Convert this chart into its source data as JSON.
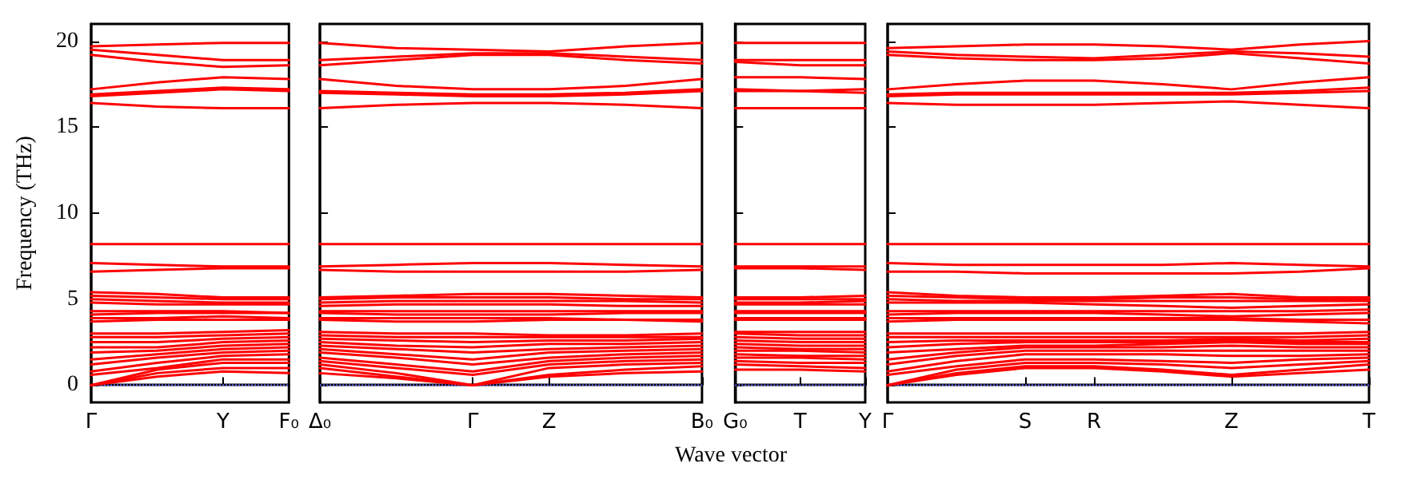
{
  "chart_data": [
    {
      "type": "line",
      "ylabel": "Frequency (THz)",
      "color": "#ff0000",
      "categories": [
        "Γ",
        null,
        "Y",
        "F₀"
      ],
      "ylim": [
        -1,
        21
      ],
      "yticks": [
        0,
        5,
        10,
        15,
        20
      ],
      "ref_lines": [
        {
          "axis": "y",
          "value": 0,
          "color": "#6666ff",
          "line_style": "dotted"
        }
      ],
      "series": [
        {
          "values": [
            19.7,
            19.8,
            19.9,
            19.9
          ]
        },
        {
          "values": [
            19.5,
            19.2,
            18.9,
            18.9
          ]
        },
        {
          "values": [
            19.2,
            18.8,
            18.5,
            18.6
          ]
        },
        {
          "values": [
            17.2,
            17.6,
            17.9,
            17.8
          ]
        },
        {
          "values": [
            16.9,
            17.1,
            17.3,
            17.2
          ]
        },
        {
          "values": [
            16.8,
            17.0,
            17.2,
            17.1
          ]
        },
        {
          "values": [
            16.4,
            16.2,
            16.1,
            16.1
          ]
        },
        {
          "values": [
            8.2,
            8.2,
            8.2,
            8.2
          ]
        },
        {
          "values": [
            7.1,
            7.0,
            6.9,
            6.9
          ]
        },
        {
          "values": [
            6.6,
            6.7,
            6.8,
            6.8
          ]
        },
        {
          "values": [
            5.4,
            5.3,
            5.1,
            5.1
          ]
        },
        {
          "values": [
            5.2,
            5.1,
            5.0,
            5.0
          ]
        },
        {
          "values": [
            5.0,
            4.9,
            4.8,
            4.8
          ]
        },
        {
          "values": [
            4.8,
            4.7,
            4.7,
            4.7
          ]
        },
        {
          "values": [
            4.3,
            4.3,
            4.3,
            4.2
          ]
        },
        {
          "values": [
            4.1,
            4.2,
            4.2,
            4.2
          ]
        },
        {
          "values": [
            3.9,
            3.9,
            4.0,
            3.9
          ]
        },
        {
          "values": [
            3.7,
            3.8,
            3.8,
            3.8
          ]
        },
        {
          "values": [
            0,
            0.5,
            0.8,
            0.7
          ]
        },
        {
          "values": [
            0,
            0.7,
            1.0,
            1.0
          ]
        },
        {
          "values": [
            0,
            0.9,
            1.3,
            1.3
          ]
        },
        {
          "values": [
            0.6,
            1.0,
            1.5,
            1.5
          ]
        },
        {
          "values": [
            0.8,
            1.3,
            1.7,
            1.8
          ]
        },
        {
          "values": [
            1.2,
            1.6,
            1.9,
            2.0
          ]
        },
        {
          "values": [
            1.5,
            1.8,
            2.1,
            2.2
          ]
        },
        {
          "values": [
            1.9,
            2.0,
            2.3,
            2.4
          ]
        },
        {
          "values": [
            2.2,
            2.2,
            2.5,
            2.6
          ]
        },
        {
          "values": [
            2.5,
            2.5,
            2.7,
            2.8
          ]
        },
        {
          "values": [
            2.8,
            2.8,
            2.9,
            3.0
          ]
        },
        {
          "values": [
            3.0,
            3.0,
            3.1,
            3.2
          ]
        }
      ]
    },
    {
      "type": "line",
      "xlabel": "Wave vector",
      "tick_labels": "x",
      "color": "#ff0000",
      "categories": [
        "Δ₀",
        null,
        "Γ",
        "Z",
        null,
        "B₀"
      ],
      "ylim": [
        -1,
        21
      ],
      "ref_lines": [
        {
          "axis": "y",
          "value": 0,
          "color": "#6666ff",
          "line_style": "dotted"
        }
      ],
      "series": [
        {
          "values": [
            19.9,
            19.6,
            19.5,
            19.4,
            19.7,
            19.9
          ]
        },
        {
          "values": [
            18.9,
            19.1,
            19.3,
            19.3,
            19.1,
            18.9
          ]
        },
        {
          "values": [
            18.6,
            18.9,
            19.2,
            19.2,
            18.9,
            18.7
          ]
        },
        {
          "values": [
            17.8,
            17.4,
            17.2,
            17.2,
            17.4,
            17.8
          ]
        },
        {
          "values": [
            17.1,
            17.0,
            16.9,
            16.9,
            17.0,
            17.2
          ]
        },
        {
          "values": [
            17.0,
            16.9,
            16.8,
            16.8,
            16.9,
            17.1
          ]
        },
        {
          "values": [
            16.1,
            16.3,
            16.4,
            16.4,
            16.3,
            16.1
          ]
        },
        {
          "values": [
            8.2,
            8.2,
            8.2,
            8.2,
            8.2,
            8.2
          ]
        },
        {
          "values": [
            6.9,
            7.0,
            7.1,
            7.1,
            7.0,
            6.9
          ]
        },
        {
          "values": [
            6.7,
            6.6,
            6.6,
            6.6,
            6.6,
            6.7
          ]
        },
        {
          "values": [
            5.1,
            5.2,
            5.3,
            5.3,
            5.2,
            5.1
          ]
        },
        {
          "values": [
            5.0,
            5.1,
            5.1,
            5.1,
            5.0,
            5.0
          ]
        },
        {
          "values": [
            4.8,
            4.9,
            4.9,
            4.9,
            4.9,
            4.8
          ]
        },
        {
          "values": [
            4.6,
            4.7,
            4.7,
            4.7,
            4.6,
            4.6
          ]
        },
        {
          "values": [
            4.3,
            4.3,
            4.3,
            4.3,
            4.3,
            4.3
          ]
        },
        {
          "values": [
            4.2,
            4.1,
            4.1,
            4.1,
            4.2,
            4.2
          ]
        },
        {
          "values": [
            3.9,
            3.9,
            3.9,
            3.9,
            3.8,
            3.8
          ]
        },
        {
          "values": [
            3.8,
            3.7,
            3.7,
            3.8,
            3.8,
            3.7
          ]
        },
        {
          "values": [
            0.7,
            0.4,
            0,
            0.5,
            0.7,
            0.8
          ]
        },
        {
          "values": [
            1.0,
            0.5,
            0,
            0.6,
            0.9,
            1.1
          ]
        },
        {
          "values": [
            1.2,
            0.7,
            0,
            1.0,
            1.2,
            1.3
          ]
        },
        {
          "values": [
            1.4,
            1.0,
            0.6,
            1.2,
            1.4,
            1.5
          ]
        },
        {
          "values": [
            1.6,
            1.2,
            0.8,
            1.4,
            1.6,
            1.7
          ]
        },
        {
          "values": [
            1.9,
            1.6,
            1.2,
            1.6,
            1.8,
            1.9
          ]
        },
        {
          "values": [
            2.1,
            1.8,
            1.5,
            1.9,
            2.0,
            2.1
          ]
        },
        {
          "values": [
            2.3,
            2.1,
            1.9,
            2.1,
            2.2,
            2.3
          ]
        },
        {
          "values": [
            2.5,
            2.3,
            2.2,
            2.4,
            2.4,
            2.5
          ]
        },
        {
          "values": [
            2.7,
            2.6,
            2.5,
            2.6,
            2.6,
            2.7
          ]
        },
        {
          "values": [
            2.9,
            2.8,
            2.8,
            2.8,
            2.8,
            2.8
          ]
        },
        {
          "values": [
            3.1,
            3.0,
            3.0,
            2.9,
            2.9,
            3.0
          ]
        }
      ]
    },
    {
      "type": "line",
      "tick_labels": "x",
      "color": "#ff0000",
      "categories": [
        "G₀",
        "T",
        "Y"
      ],
      "ylim": [
        -1,
        21
      ],
      "ref_lines": [
        {
          "axis": "y",
          "value": 0,
          "color": "#6666ff",
          "line_style": "dotted"
        }
      ],
      "series": [
        {
          "values": [
            19.9,
            19.9,
            19.9
          ]
        },
        {
          "values": [
            18.9,
            18.9,
            18.9
          ]
        },
        {
          "values": [
            18.8,
            18.6,
            18.6
          ]
        },
        {
          "values": [
            17.9,
            17.9,
            17.8
          ]
        },
        {
          "values": [
            17.2,
            17.1,
            17.2
          ]
        },
        {
          "values": [
            17.1,
            17.1,
            17.0
          ]
        },
        {
          "values": [
            16.1,
            16.1,
            16.1
          ]
        },
        {
          "values": [
            8.2,
            8.2,
            8.2
          ]
        },
        {
          "values": [
            6.9,
            6.9,
            6.9
          ]
        },
        {
          "values": [
            6.8,
            6.8,
            6.7
          ]
        },
        {
          "values": [
            5.1,
            5.1,
            5.2
          ]
        },
        {
          "values": [
            5.0,
            5.0,
            5.0
          ]
        },
        {
          "values": [
            4.8,
            4.8,
            4.9
          ]
        },
        {
          "values": [
            4.7,
            4.7,
            4.7
          ]
        },
        {
          "values": [
            4.3,
            4.3,
            4.3
          ]
        },
        {
          "values": [
            4.2,
            4.2,
            4.2
          ]
        },
        {
          "values": [
            3.9,
            3.9,
            3.9
          ]
        },
        {
          "values": [
            3.8,
            3.8,
            3.8
          ]
        },
        {
          "values": [
            0.9,
            0.9,
            0.8
          ]
        },
        {
          "values": [
            1.2,
            1.1,
            1.0
          ]
        },
        {
          "values": [
            1.4,
            1.3,
            1.3
          ]
        },
        {
          "values": [
            1.6,
            1.6,
            1.5
          ]
        },
        {
          "values": [
            1.8,
            1.7,
            1.7
          ]
        },
        {
          "values": [
            2.0,
            2.0,
            1.9
          ]
        },
        {
          "values": [
            2.2,
            2.1,
            2.1
          ]
        },
        {
          "values": [
            2.4,
            2.3,
            2.3
          ]
        },
        {
          "values": [
            2.6,
            2.5,
            2.5
          ]
        },
        {
          "values": [
            2.8,
            2.7,
            2.7
          ]
        },
        {
          "values": [
            3.0,
            2.9,
            2.9
          ]
        },
        {
          "values": [
            3.1,
            3.1,
            3.1
          ]
        }
      ]
    },
    {
      "type": "line",
      "tick_labels": "x",
      "color": "#ff0000",
      "categories": [
        "Γ",
        null,
        "S",
        "R",
        null,
        "Z",
        null,
        "T"
      ],
      "ylim": [
        -1,
        21
      ],
      "ref_lines": [
        {
          "axis": "y",
          "value": 0,
          "color": "#6666ff",
          "line_style": "dotted"
        }
      ],
      "series": [
        {
          "values": [
            19.6,
            19.7,
            19.8,
            19.8,
            19.7,
            19.5,
            19.8,
            20.0
          ]
        },
        {
          "values": [
            19.4,
            19.2,
            19.1,
            19.0,
            19.2,
            19.4,
            19.3,
            19.1
          ]
        },
        {
          "values": [
            19.2,
            19.0,
            18.9,
            18.9,
            19.0,
            19.3,
            19.0,
            18.7
          ]
        },
        {
          "values": [
            17.2,
            17.5,
            17.7,
            17.7,
            17.5,
            17.2,
            17.6,
            17.9
          ]
        },
        {
          "values": [
            16.9,
            17.0,
            17.0,
            17.0,
            17.0,
            17.0,
            17.1,
            17.3
          ]
        },
        {
          "values": [
            16.8,
            16.9,
            16.9,
            16.9,
            16.9,
            16.9,
            17.0,
            17.1
          ]
        },
        {
          "values": [
            16.4,
            16.3,
            16.3,
            16.3,
            16.4,
            16.5,
            16.3,
            16.1
          ]
        },
        {
          "values": [
            8.2,
            8.2,
            8.2,
            8.2,
            8.2,
            8.2,
            8.2,
            8.2
          ]
        },
        {
          "values": [
            7.1,
            7.0,
            7.0,
            7.0,
            7.0,
            7.1,
            7.0,
            6.9
          ]
        },
        {
          "values": [
            6.6,
            6.6,
            6.5,
            6.5,
            6.5,
            6.5,
            6.6,
            6.8
          ]
        },
        {
          "values": [
            5.4,
            5.2,
            5.1,
            5.1,
            5.2,
            5.3,
            5.1,
            5.1
          ]
        },
        {
          "values": [
            5.2,
            5.1,
            5.0,
            5.0,
            5.1,
            5.1,
            5.0,
            5.0
          ]
        },
        {
          "values": [
            5.0,
            4.9,
            4.9,
            4.9,
            4.9,
            4.9,
            4.9,
            4.9
          ]
        },
        {
          "values": [
            4.8,
            4.8,
            4.8,
            4.7,
            4.6,
            4.5,
            4.6,
            4.7
          ]
        },
        {
          "values": [
            4.3,
            4.3,
            4.3,
            4.3,
            4.3,
            4.3,
            4.3,
            4.4
          ]
        },
        {
          "values": [
            4.1,
            4.2,
            4.2,
            4.2,
            4.1,
            4.0,
            4.1,
            4.2
          ]
        },
        {
          "values": [
            3.9,
            3.9,
            3.9,
            3.9,
            3.9,
            3.9,
            3.8,
            3.8
          ]
        },
        {
          "values": [
            3.7,
            3.8,
            3.8,
            3.8,
            3.8,
            3.8,
            3.7,
            3.6
          ]
        },
        {
          "values": [
            0,
            0.6,
            1.0,
            1.0,
            0.8,
            0.5,
            0.7,
            0.9
          ]
        },
        {
          "values": [
            0,
            0.7,
            1.1,
            1.1,
            0.9,
            0.6,
            0.9,
            1.2
          ]
        },
        {
          "values": [
            0,
            0.9,
            1.3,
            1.3,
            1.2,
            1.0,
            1.2,
            1.4
          ]
        },
        {
          "values": [
            0.6,
            1.1,
            1.5,
            1.5,
            1.4,
            1.3,
            1.5,
            1.6
          ]
        },
        {
          "values": [
            0.8,
            1.4,
            1.8,
            1.8,
            1.8,
            1.7,
            1.7,
            1.8
          ]
        },
        {
          "values": [
            1.2,
            1.7,
            2.0,
            2.0,
            2.0,
            2.0,
            2.0,
            2.0
          ]
        },
        {
          "values": [
            1.5,
            1.9,
            2.2,
            2.2,
            2.2,
            2.3,
            2.2,
            2.2
          ]
        },
        {
          "values": [
            1.9,
            2.1,
            2.3,
            2.3,
            2.4,
            2.5,
            2.4,
            2.4
          ]
        },
        {
          "values": [
            2.2,
            2.4,
            2.5,
            2.5,
            2.5,
            2.6,
            2.5,
            2.5
          ]
        },
        {
          "values": [
            2.5,
            2.6,
            2.6,
            2.6,
            2.6,
            2.7,
            2.6,
            2.7
          ]
        },
        {
          "values": [
            2.8,
            2.8,
            2.8,
            2.8,
            2.8,
            2.8,
            2.8,
            2.9
          ]
        },
        {
          "values": [
            3.0,
            3.0,
            3.0,
            3.0,
            3.0,
            3.0,
            3.0,
            3.1
          ]
        }
      ]
    }
  ]
}
